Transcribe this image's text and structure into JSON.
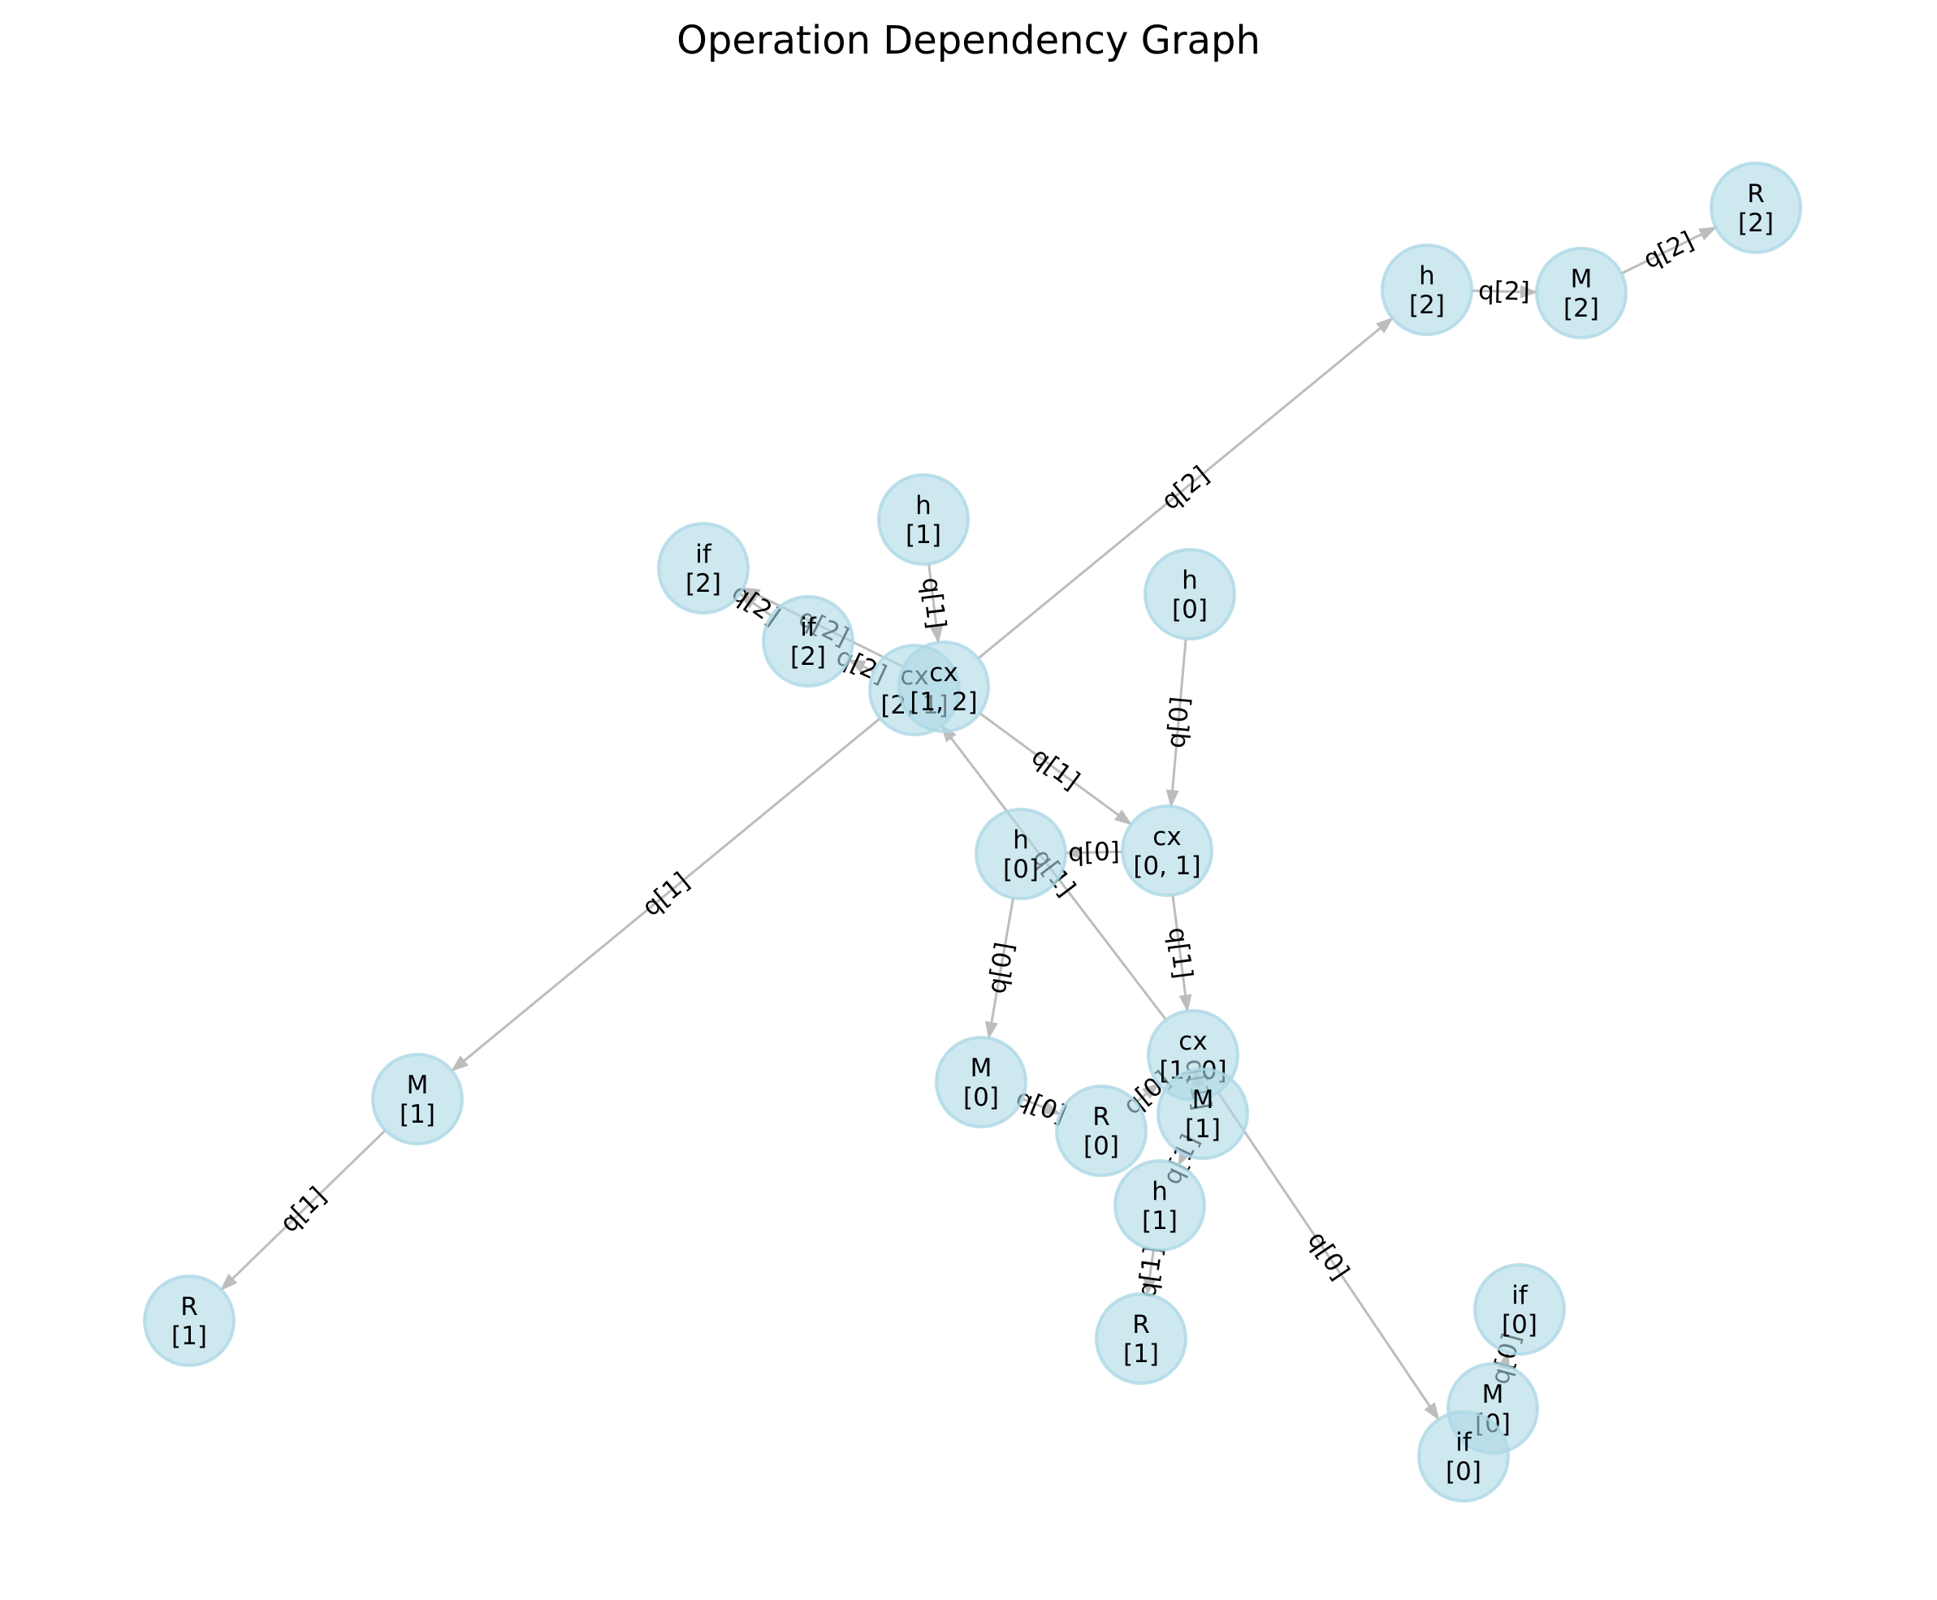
{
  "title": "Operation Dependency Graph",
  "colors": {
    "node_fill": "#add8e6",
    "node_stroke": "#add8e6",
    "edge": "#bdbdbd",
    "text": "#000000"
  },
  "nodes": [
    {
      "id": "h2",
      "op": "h",
      "qubits": "[2]"
    },
    {
      "id": "M2",
      "op": "M",
      "qubits": "[2]"
    },
    {
      "id": "R2",
      "op": "R",
      "qubits": "[2]"
    },
    {
      "id": "h1a",
      "op": "h",
      "qubits": "[1]"
    },
    {
      "id": "if2a",
      "op": "if",
      "qubits": "[2]"
    },
    {
      "id": "if2b",
      "op": "if",
      "qubits": "[2]"
    },
    {
      "id": "cx21",
      "op": "cx",
      "qubits": "[2, 1]"
    },
    {
      "id": "cx12",
      "op": "cx",
      "qubits": "[1, 2]"
    },
    {
      "id": "h0a",
      "op": "h",
      "qubits": "[0]"
    },
    {
      "id": "h0b",
      "op": "h",
      "qubits": "[0]"
    },
    {
      "id": "cx01",
      "op": "cx",
      "qubits": "[0, 1]"
    },
    {
      "id": "M1a",
      "op": "M",
      "qubits": "[1]"
    },
    {
      "id": "R1a",
      "op": "R",
      "qubits": "[1]"
    },
    {
      "id": "M0a",
      "op": "M",
      "qubits": "[0]"
    },
    {
      "id": "R0",
      "op": "R",
      "qubits": "[0]"
    },
    {
      "id": "cx10",
      "op": "cx",
      "qubits": "[1, 0]"
    },
    {
      "id": "M1b",
      "op": "M",
      "qubits": "[1]"
    },
    {
      "id": "h1b",
      "op": "h",
      "qubits": "[1]"
    },
    {
      "id": "R1b",
      "op": "R",
      "qubits": "[1]"
    },
    {
      "id": "if0a",
      "op": "if",
      "qubits": "[0]"
    },
    {
      "id": "M0b",
      "op": "M",
      "qubits": "[0]"
    },
    {
      "id": "if0b",
      "op": "if",
      "qubits": "[0]"
    }
  ],
  "edges": [
    {
      "from": "cx12",
      "to": "h2",
      "label": "q[2]"
    },
    {
      "from": "h2",
      "to": "M2",
      "label": "q[2]"
    },
    {
      "from": "M2",
      "to": "R2",
      "label": "q[2]"
    },
    {
      "from": "h1a",
      "to": "cx12",
      "label": "q[1]"
    },
    {
      "from": "cx21",
      "to": "if2b",
      "label": "q[2]"
    },
    {
      "from": "if2b",
      "to": "if2a",
      "label": "q[2]"
    },
    {
      "from": "cx12",
      "to": "if2a",
      "label": "q[2]"
    },
    {
      "from": "cx12",
      "to": "cx01",
      "label": "q[1]"
    },
    {
      "from": "h0a",
      "to": "cx01",
      "label": "q[0]"
    },
    {
      "from": "cx01",
      "to": "h0b",
      "label": "q[0]"
    },
    {
      "from": "cx21",
      "to": "M1a",
      "label": "q[1]"
    },
    {
      "from": "M1a",
      "to": "R1a",
      "label": "q[1]"
    },
    {
      "from": "h0b",
      "to": "M0a",
      "label": "q[0]"
    },
    {
      "from": "M0a",
      "to": "R0",
      "label": "q[0]"
    },
    {
      "from": "R0",
      "to": "cx10",
      "label": "q[0]"
    },
    {
      "from": "cx01",
      "to": "cx10",
      "label": "q[1]"
    },
    {
      "from": "cx10",
      "to": "cx21",
      "label": "q[1]"
    },
    {
      "from": "cx10",
      "to": "if0b",
      "label": "q[0]"
    },
    {
      "from": "cx10",
      "to": "M1b",
      "label": "q[1]"
    },
    {
      "from": "M1b",
      "to": "h1b",
      "label": "q[1]"
    },
    {
      "from": "h1b",
      "to": "R1b",
      "label": "q[1]"
    },
    {
      "from": "M0b",
      "to": "if0a",
      "label": "q[0]"
    }
  ]
}
